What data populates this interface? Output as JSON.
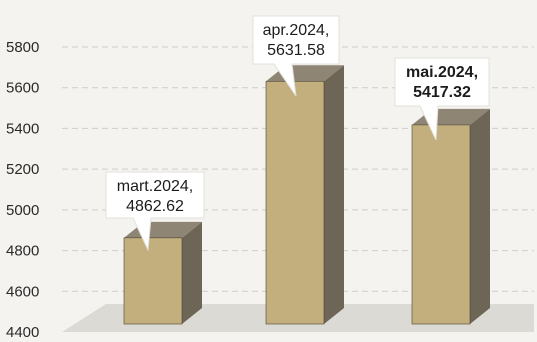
{
  "chart_data": {
    "type": "bar",
    "title": "",
    "xlabel": "",
    "ylabel": "",
    "ylim": [
      4400,
      5800
    ],
    "yticks": [
      4400,
      4600,
      4800,
      5000,
      5200,
      5400,
      5600,
      5800
    ],
    "grid": true,
    "legend": "none",
    "categories": [
      "mart.2024",
      "apr.2024",
      "mai.2024"
    ],
    "values": [
      4862.62,
      5631.58,
      5417.32
    ],
    "data_labels": [
      [
        "mart.2024,",
        "4862.62"
      ],
      [
        "apr.2024,",
        "5631.58"
      ],
      [
        "mai.2024,",
        "5417.32"
      ]
    ],
    "colors": {
      "bar_front": "#c3ae7e",
      "bar_side": "#6d6555",
      "bar_top": "#8e8574",
      "floor": "#dcdad4",
      "grid": "#cfcdc6"
    }
  }
}
